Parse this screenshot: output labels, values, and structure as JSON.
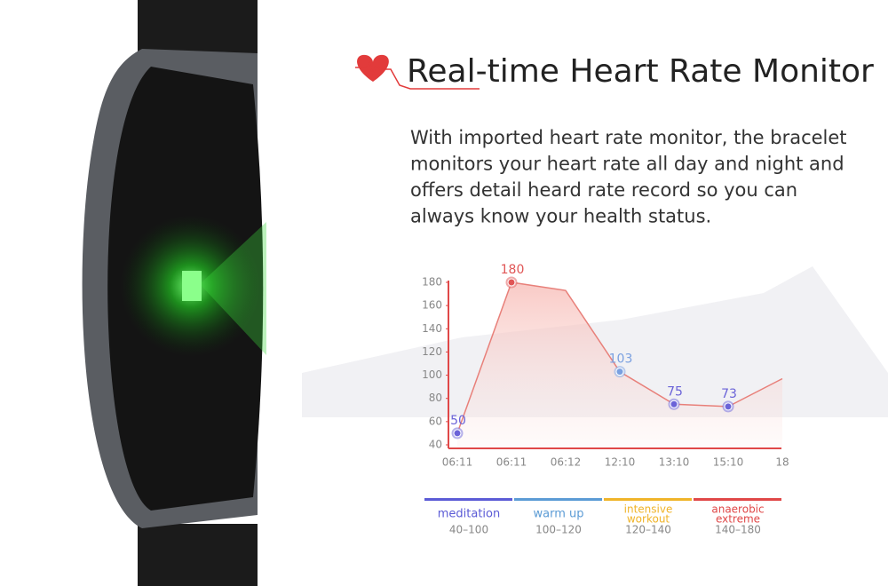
{
  "header": {
    "title": "Real-time Heart Rate Monitor"
  },
  "body": {
    "lines": [
      "With imported heart rate monitor, the bracelet",
      "monitors your heart rate all day and night and",
      "offers detail heard rate record so you can",
      "always know your health status."
    ]
  },
  "chart_data": {
    "type": "line",
    "categories": [
      "06:11",
      "06:11",
      "06:12",
      "12:10",
      "13:10",
      "15:10",
      "18"
    ],
    "series": [
      {
        "values": [
          50,
          180,
          173,
          103,
          75,
          73,
          97
        ],
        "value_labels": [
          50,
          180,
          null,
          103,
          75,
          73,
          null
        ],
        "color": "#e8807a",
        "marker_colors": [
          "#6a63d8",
          "#e05555",
          null,
          "#7aa0e0",
          "#6a63d8",
          "#6a63d8",
          null
        ]
      }
    ],
    "ylim": [
      40,
      180
    ],
    "yticks": [
      40,
      60,
      80,
      100,
      120,
      140,
      160,
      180
    ],
    "axis_color": "#e04848",
    "zones": [
      {
        "name": [
          "meditation"
        ],
        "range": "40–100",
        "color": "#5b5bd6"
      },
      {
        "name": [
          "warm up"
        ],
        "range": "100–120",
        "color": "#5b9bd5"
      },
      {
        "name": [
          "intensive",
          "workout"
        ],
        "range": "120–140",
        "color": "#f0b429"
      },
      {
        "name": [
          "anaerobic",
          "extreme"
        ],
        "range": "140–180",
        "color": "#e04848"
      }
    ]
  }
}
